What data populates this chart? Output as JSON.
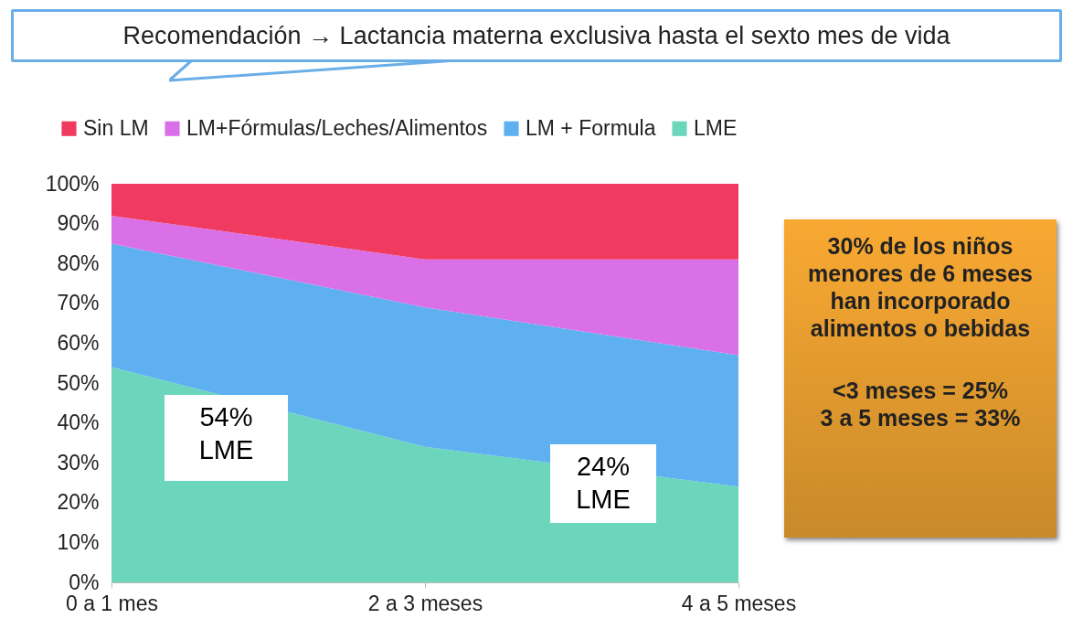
{
  "chart_data": {
    "type": "area",
    "title": "Recomendación → Lactancia materna exclusiva hasta el sexto mes de vida",
    "categories": [
      "0 a 1 mes",
      "2 a 3 meses",
      "4 a 5 meses"
    ],
    "stacked": true,
    "series": [
      {
        "name": "LME",
        "color": "#6bd6bc",
        "values": [
          54,
          34,
          24
        ]
      },
      {
        "name": "LM + Formula",
        "color": "#5fb0f0",
        "values": [
          31,
          35,
          33
        ]
      },
      {
        "name": "LM+Fórmulas/Leches/Alimentos",
        "color": "#da70e8",
        "values": [
          7,
          12,
          24
        ]
      },
      {
        "name": "Sin LM",
        "color": "#f03a5f",
        "values": [
          8,
          19,
          19
        ]
      }
    ],
    "ylim": [
      0,
      100
    ],
    "yticks": [
      {
        "value": 0,
        "label": "0%"
      },
      {
        "value": 10,
        "label": "10%"
      },
      {
        "value": 20,
        "label": "20%"
      },
      {
        "value": 30,
        "label": "30%"
      },
      {
        "value": 40,
        "label": "40%"
      },
      {
        "value": 50,
        "label": "50%"
      },
      {
        "value": 60,
        "label": "60%"
      },
      {
        "value": 70,
        "label": "70%"
      },
      {
        "value": 80,
        "label": "80%"
      },
      {
        "value": 90,
        "label": "90%"
      },
      {
        "value": 100,
        "label": "100%"
      }
    ],
    "grid": false,
    "legend": "top",
    "annotations": [
      "54%\nLME",
      "24%\nLME",
      "30% de los niños menores de 6 meses han incorporado alimentos o bebidas",
      "<3 meses = 25%\n3 a 5 meses = 33%"
    ]
  }
}
